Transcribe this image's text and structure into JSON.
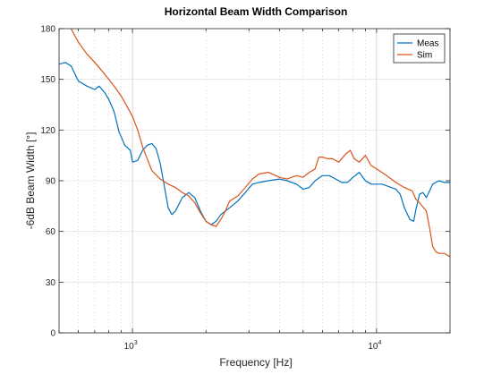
{
  "chart_data": {
    "type": "line",
    "title": "Horizontal Beam Width Comparison",
    "xlabel": "Frequency [Hz]",
    "ylabel": "-6dB Beam Width [°]",
    "xscale": "log",
    "xlim": [
      500,
      20000
    ],
    "ylim": [
      0,
      180
    ],
    "yticks": [
      0,
      30,
      60,
      90,
      120,
      150,
      180
    ],
    "xtick_labels": [
      {
        "value": 1000,
        "base": "10",
        "exp": "3"
      },
      {
        "value": 10000,
        "base": "10",
        "exp": "4"
      }
    ],
    "grid": true,
    "minor_grid_x": true,
    "legend": "top-right",
    "colors": {
      "Meas": "#0072BD",
      "Sim": "#D95319"
    },
    "series": [
      {
        "name": "Meas",
        "x": [
          500,
          530,
          560,
          600,
          650,
          700,
          730,
          770,
          800,
          840,
          880,
          930,
          980,
          1000,
          1050,
          1100,
          1150,
          1200,
          1250,
          1300,
          1400,
          1450,
          1500,
          1600,
          1700,
          1800,
          1900,
          2000,
          2100,
          2200,
          2300,
          2500,
          2700,
          2900,
          3100,
          3300,
          3600,
          4000,
          4300,
          4700,
          5000,
          5300,
          5600,
          6000,
          6400,
          6800,
          7200,
          7600,
          8000,
          8500,
          9000,
          9500,
          10000,
          10500,
          11000,
          12000,
          12500,
          13000,
          13700,
          14200,
          14500,
          15000,
          15500,
          16000,
          17000,
          18000,
          19000,
          20000
        ],
        "values": [
          159,
          160,
          158,
          149,
          146,
          144,
          146,
          142,
          138,
          131,
          119,
          111,
          108,
          101,
          102,
          108,
          111,
          112,
          109,
          100,
          74,
          70,
          72,
          80,
          83,
          80,
          72,
          66,
          64,
          66,
          70,
          74,
          78,
          83,
          88,
          89,
          90,
          91,
          90,
          88,
          85,
          86,
          90,
          93,
          93,
          91,
          89,
          89,
          92,
          95,
          90,
          88,
          88,
          88,
          87,
          85,
          82,
          74,
          67,
          66,
          73,
          82,
          83,
          80,
          88,
          90,
          89,
          89
        ]
      },
      {
        "name": "Sim",
        "x": [
          500,
          540,
          560,
          600,
          650,
          700,
          750,
          800,
          850,
          900,
          950,
          1000,
          1050,
          1100,
          1200,
          1300,
          1400,
          1500,
          1600,
          1700,
          1800,
          1900,
          2000,
          2100,
          2200,
          2300,
          2400,
          2500,
          2700,
          2900,
          3100,
          3300,
          3600,
          4000,
          4300,
          4700,
          5000,
          5300,
          5600,
          5800,
          6000,
          6300,
          6600,
          7000,
          7500,
          7800,
          8100,
          8500,
          9000,
          9500,
          10000,
          10500,
          11000,
          12000,
          13000,
          13500,
          14000,
          14500,
          15000,
          16000,
          16500,
          17000,
          17500,
          18000,
          19000,
          20000
        ],
        "values": [
          192,
          185,
          180,
          172,
          165,
          160,
          155,
          150,
          145,
          140,
          134,
          128,
          120,
          110,
          96,
          91,
          88,
          86,
          83,
          81,
          77,
          71,
          66,
          64,
          63,
          67,
          72,
          78,
          81,
          86,
          91,
          94,
          95,
          92,
          91,
          93,
          92,
          95,
          97,
          104,
          104,
          103,
          103,
          101,
          106,
          108,
          103,
          101,
          105,
          99,
          97,
          95,
          93,
          89,
          86,
          85,
          84,
          79,
          77,
          72,
          62,
          51,
          48,
          47,
          47,
          45
        ]
      }
    ]
  }
}
